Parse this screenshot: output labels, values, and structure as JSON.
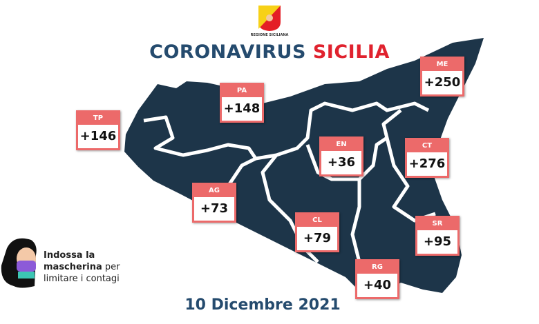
{
  "header": {
    "region_label": "REGIONE SICILIANA",
    "title_part1": "CORONAVIRUS",
    "title_part2": "SICILIA"
  },
  "colors": {
    "map": "#1d3549",
    "accent": "#ec6a6a",
    "title_blue": "#254b6e",
    "title_red": "#e0222e"
  },
  "provinces": [
    {
      "code": "TP",
      "value": "+146"
    },
    {
      "code": "PA",
      "value": "+148"
    },
    {
      "code": "ME",
      "value": "+250"
    },
    {
      "code": "EN",
      "value": "+36"
    },
    {
      "code": "CT",
      "value": "+276"
    },
    {
      "code": "AG",
      "value": "+73"
    },
    {
      "code": "CL",
      "value": "+79"
    },
    {
      "code": "SR",
      "value": "+95"
    },
    {
      "code": "RG",
      "value": "+40"
    }
  ],
  "notice": {
    "bold1": "Indossa la",
    "bold2": "mascherina",
    "rest1": "per",
    "rest2": "limitare i contagi"
  },
  "date": "10 Dicembre 2021"
}
